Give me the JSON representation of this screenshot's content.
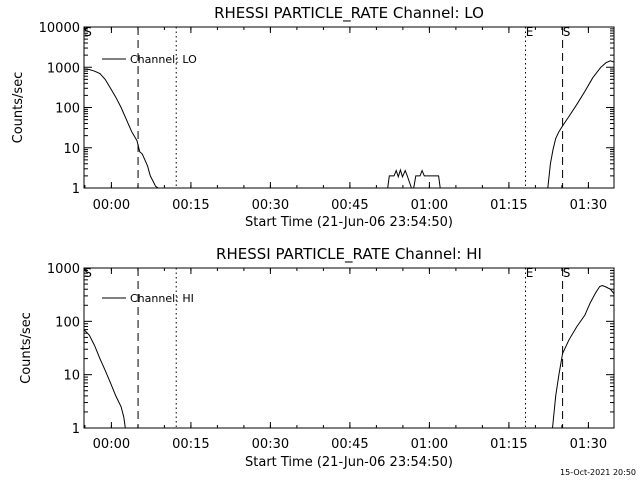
{
  "page": {
    "timestamp": "15-Oct-2021 20:50"
  },
  "chart_data": [
    {
      "type": "line",
      "title": "RHESSI PARTICLE_RATE Channel: LO",
      "xlabel": "Start Time (21-Jun-06 23:54:50)",
      "ylabel": "Counts/sec",
      "x_unit": "minutes after 21-Jun-06 23:54:50",
      "xlim": [
        0,
        100
      ],
      "ylim": [
        1,
        10000
      ],
      "y_scale": "log",
      "x_ticks": [
        {
          "value": 5.17,
          "label": "00:00"
        },
        {
          "value": 20.17,
          "label": "00:15"
        },
        {
          "value": 35.17,
          "label": "00:30"
        },
        {
          "value": 50.17,
          "label": "00:45"
        },
        {
          "value": 65.17,
          "label": "01:00"
        },
        {
          "value": 80.17,
          "label": "01:15"
        },
        {
          "value": 95.17,
          "label": "01:30"
        }
      ],
      "y_ticks": [
        {
          "value": 1,
          "label": "1"
        },
        {
          "value": 10,
          "label": "10"
        },
        {
          "value": 100,
          "label": "100"
        },
        {
          "value": 1000,
          "label": "1000"
        },
        {
          "value": 10000,
          "label": "10000"
        }
      ],
      "legend": {
        "entries": [
          "Channel: LO"
        ],
        "placement": "top-left"
      },
      "markers": [
        {
          "x": 0,
          "style": "dash-dot",
          "label": "S"
        },
        {
          "x": 10.2,
          "style": "dashed",
          "label": ""
        },
        {
          "x": 17.4,
          "style": "dotted",
          "label": ""
        },
        {
          "x": 83.3,
          "style": "dotted",
          "label": "E"
        },
        {
          "x": 90.3,
          "style": "dashed",
          "label": "S"
        },
        {
          "x": 100,
          "style": "dash-dot",
          "label": ""
        }
      ],
      "series": [
        {
          "name": "Channel: LO",
          "segments": [
            [
              [
                0,
                900
              ],
              [
                1,
                880
              ],
              [
                2,
                800
              ],
              [
                3,
                700
              ],
              [
                4,
                500
              ],
              [
                5,
                300
              ],
              [
                6,
                180
              ],
              [
                7,
                100
              ],
              [
                8,
                50
              ],
              [
                9,
                25
              ],
              [
                10,
                15
              ],
              [
                10.5,
                8
              ],
              [
                11,
                7
              ],
              [
                11.5,
                5
              ],
              [
                12,
                3.5
              ],
              [
                12.5,
                2
              ],
              [
                13,
                1.5
              ],
              [
                13.5,
                1.1
              ],
              [
                14,
                1
              ]
            ],
            [
              [
                57.3,
                1
              ],
              [
                57.6,
                2
              ],
              [
                58.5,
                2
              ],
              [
                58.9,
                2.7
              ],
              [
                59.3,
                1.9
              ],
              [
                59.7,
                2.8
              ],
              [
                60.1,
                1.9
              ],
              [
                60.6,
                2.7
              ],
              [
                61,
                2
              ],
              [
                61.4,
                1.4
              ],
              [
                61.8,
                1
              ]
            ],
            [
              [
                62.2,
                1
              ],
              [
                62.6,
                2
              ],
              [
                63.4,
                2
              ],
              [
                63.8,
                2.7
              ],
              [
                64.2,
                2
              ],
              [
                65.5,
                2
              ],
              [
                66.9,
                2
              ],
              [
                67.2,
                1
              ]
            ],
            [
              [
                87.5,
                1
              ],
              [
                88,
                4
              ],
              [
                88.5,
                9
              ],
              [
                89,
                17
              ],
              [
                89.6,
                25
              ],
              [
                90.3,
                35
              ],
              [
                91.5,
                60
              ],
              [
                93,
                120
              ],
              [
                94.5,
                250
              ],
              [
                96,
                550
              ],
              [
                97.5,
                1000
              ],
              [
                98.5,
                1300
              ],
              [
                99.3,
                1450
              ],
              [
                100,
                1350
              ]
            ]
          ]
        }
      ]
    },
    {
      "type": "line",
      "title": "RHESSI PARTICLE_RATE Channel: HI",
      "xlabel": "Start Time (21-Jun-06 23:54:50)",
      "ylabel": "Counts/sec",
      "x_unit": "minutes after 21-Jun-06 23:54:50",
      "xlim": [
        0,
        100
      ],
      "ylim": [
        1,
        1000
      ],
      "y_scale": "log",
      "x_ticks": [
        {
          "value": 5.17,
          "label": "00:00"
        },
        {
          "value": 20.17,
          "label": "00:15"
        },
        {
          "value": 35.17,
          "label": "00:30"
        },
        {
          "value": 50.17,
          "label": "00:45"
        },
        {
          "value": 65.17,
          "label": "01:00"
        },
        {
          "value": 80.17,
          "label": "01:15"
        },
        {
          "value": 95.17,
          "label": "01:30"
        }
      ],
      "y_ticks": [
        {
          "value": 1,
          "label": "1"
        },
        {
          "value": 10,
          "label": "10"
        },
        {
          "value": 100,
          "label": "100"
        },
        {
          "value": 1000,
          "label": "1000"
        }
      ],
      "legend": {
        "entries": [
          "Channel: HI"
        ],
        "placement": "top-left"
      },
      "markers": [
        {
          "x": 0,
          "style": "dash-dot",
          "label": "S"
        },
        {
          "x": 10.2,
          "style": "dashed",
          "label": ""
        },
        {
          "x": 17.4,
          "style": "dotted",
          "label": ""
        },
        {
          "x": 83.3,
          "style": "dotted",
          "label": "E"
        },
        {
          "x": 90.3,
          "style": "dashed",
          "label": "S"
        },
        {
          "x": 100,
          "style": "dash-dot",
          "label": ""
        }
      ],
      "series": [
        {
          "name": "Channel: HI",
          "segments": [
            [
              [
                0,
                70
              ],
              [
                1,
                55
              ],
              [
                2,
                35
              ],
              [
                3,
                20
              ],
              [
                4,
                12
              ],
              [
                5,
                7
              ],
              [
                6,
                4
              ],
              [
                7,
                2.5
              ],
              [
                7.5,
                1.6
              ],
              [
                7.8,
                1
              ]
            ],
            [
              [
                88.4,
                1
              ],
              [
                89,
                4
              ],
              [
                89.6,
                10
              ],
              [
                90.3,
                25
              ],
              [
                91.5,
                45
              ],
              [
                93,
                80
              ],
              [
                94.5,
                130
              ],
              [
                95.5,
                220
              ],
              [
                96.5,
                340
              ],
              [
                97.3,
                450
              ],
              [
                97.8,
                470
              ],
              [
                98.5,
                440
              ],
              [
                99.3,
                400
              ],
              [
                100,
                330
              ]
            ]
          ]
        }
      ]
    }
  ]
}
